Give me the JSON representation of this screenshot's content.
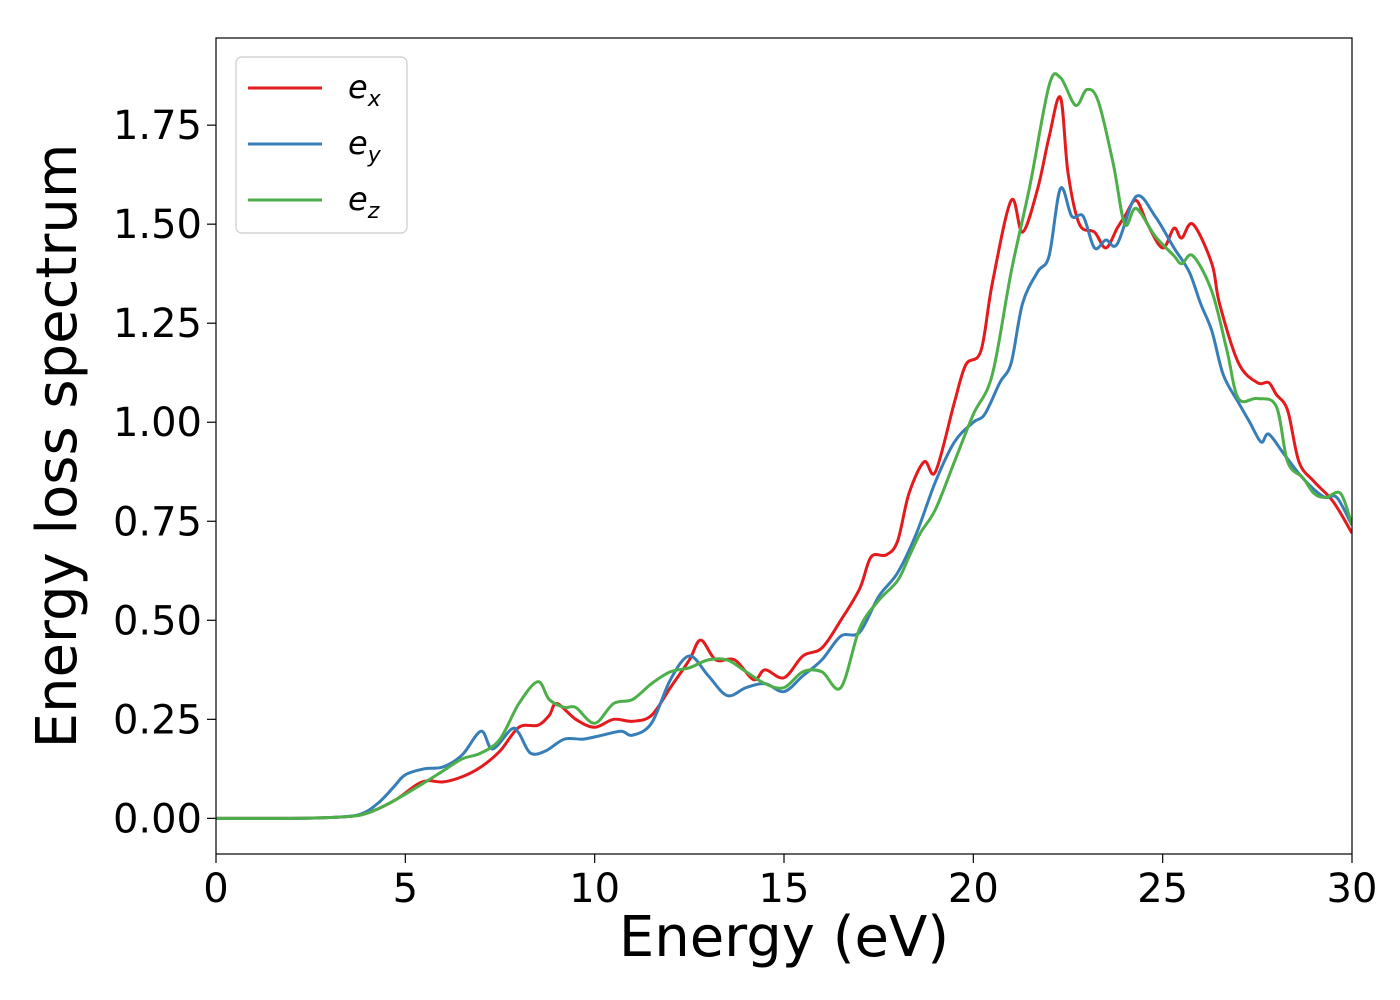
{
  "chart_data": {
    "type": "line",
    "title": "",
    "xlabel": "Energy (eV)",
    "ylabel": "Energy loss spectrum",
    "xlim": [
      0,
      30
    ],
    "ylim": [
      -0.09,
      1.97
    ],
    "xticks": [
      0,
      5,
      10,
      15,
      20,
      25,
      30
    ],
    "xtick_labels": [
      "0",
      "5",
      "10",
      "15",
      "20",
      "25",
      "30"
    ],
    "yticks": [
      0.0,
      0.25,
      0.5,
      0.75,
      1.0,
      1.25,
      1.5,
      1.75
    ],
    "ytick_labels": [
      "0.00",
      "0.25",
      "0.50",
      "0.75",
      "1.00",
      "1.25",
      "1.50",
      "1.75"
    ],
    "grid": false,
    "legend": "top-left",
    "series": [
      {
        "name": "e_x",
        "label_base": "e",
        "label_sub": "x",
        "color": "#e41a1c",
        "points": [
          [
            0,
            0
          ],
          [
            2,
            0
          ],
          [
            3,
            0.002
          ],
          [
            3.8,
            0.008
          ],
          [
            4.3,
            0.025
          ],
          [
            4.8,
            0.05
          ],
          [
            5.3,
            0.085
          ],
          [
            5.6,
            0.095
          ],
          [
            6,
            0.092
          ],
          [
            6.5,
            0.105
          ],
          [
            7,
            0.13
          ],
          [
            7.5,
            0.17
          ],
          [
            8,
            0.23
          ],
          [
            8.5,
            0.235
          ],
          [
            8.8,
            0.26
          ],
          [
            9,
            0.29
          ],
          [
            9.5,
            0.25
          ],
          [
            10,
            0.23
          ],
          [
            10.5,
            0.25
          ],
          [
            11,
            0.245
          ],
          [
            11.5,
            0.26
          ],
          [
            12,
            0.33
          ],
          [
            12.5,
            0.4
          ],
          [
            12.8,
            0.45
          ],
          [
            13.2,
            0.4
          ],
          [
            13.7,
            0.4
          ],
          [
            14.2,
            0.35
          ],
          [
            14.5,
            0.375
          ],
          [
            15,
            0.355
          ],
          [
            15.5,
            0.41
          ],
          [
            16,
            0.43
          ],
          [
            16.5,
            0.5
          ],
          [
            17,
            0.58
          ],
          [
            17.3,
            0.66
          ],
          [
            17.7,
            0.665
          ],
          [
            18,
            0.7
          ],
          [
            18.3,
            0.82
          ],
          [
            18.7,
            0.9
          ],
          [
            19,
            0.875
          ],
          [
            19.5,
            1.05
          ],
          [
            19.8,
            1.145
          ],
          [
            20.2,
            1.18
          ],
          [
            20.5,
            1.35
          ],
          [
            21,
            1.56
          ],
          [
            21.3,
            1.48
          ],
          [
            21.7,
            1.59
          ],
          [
            22,
            1.72
          ],
          [
            22.3,
            1.82
          ],
          [
            22.5,
            1.63
          ],
          [
            22.8,
            1.5
          ],
          [
            23.2,
            1.48
          ],
          [
            23.5,
            1.44
          ],
          [
            23.8,
            1.49
          ],
          [
            24,
            1.52
          ],
          [
            24.3,
            1.56
          ],
          [
            24.6,
            1.5
          ],
          [
            25,
            1.44
          ],
          [
            25.3,
            1.49
          ],
          [
            25.5,
            1.465
          ],
          [
            25.8,
            1.5
          ],
          [
            26.3,
            1.4
          ],
          [
            26.5,
            1.3
          ],
          [
            27,
            1.15
          ],
          [
            27.5,
            1.1
          ],
          [
            27.8,
            1.1
          ],
          [
            28,
            1.07
          ],
          [
            28.3,
            1.03
          ],
          [
            28.6,
            0.9
          ],
          [
            29,
            0.85
          ],
          [
            29.5,
            0.8
          ],
          [
            30,
            0.72
          ]
        ]
      },
      {
        "name": "e_y",
        "label_base": "e",
        "label_sub": "y",
        "color": "#377eb8",
        "points": [
          [
            0,
            0
          ],
          [
            2,
            0
          ],
          [
            3,
            0.002
          ],
          [
            3.8,
            0.01
          ],
          [
            4.3,
            0.04
          ],
          [
            4.7,
            0.08
          ],
          [
            5,
            0.11
          ],
          [
            5.5,
            0.125
          ],
          [
            6,
            0.13
          ],
          [
            6.5,
            0.16
          ],
          [
            7,
            0.22
          ],
          [
            7.3,
            0.175
          ],
          [
            7.8,
            0.225
          ],
          [
            8,
            0.215
          ],
          [
            8.3,
            0.165
          ],
          [
            8.7,
            0.17
          ],
          [
            9.2,
            0.2
          ],
          [
            9.7,
            0.2
          ],
          [
            10.2,
            0.21
          ],
          [
            10.7,
            0.22
          ],
          [
            11,
            0.21
          ],
          [
            11.5,
            0.24
          ],
          [
            12,
            0.35
          ],
          [
            12.5,
            0.41
          ],
          [
            13,
            0.36
          ],
          [
            13.5,
            0.31
          ],
          [
            14,
            0.33
          ],
          [
            14.5,
            0.34
          ],
          [
            15,
            0.32
          ],
          [
            15.5,
            0.36
          ],
          [
            16,
            0.4
          ],
          [
            16.5,
            0.46
          ],
          [
            17,
            0.47
          ],
          [
            17.5,
            0.56
          ],
          [
            18,
            0.62
          ],
          [
            18.5,
            0.72
          ],
          [
            19,
            0.85
          ],
          [
            19.5,
            0.95
          ],
          [
            20,
            1.0
          ],
          [
            20.3,
            1.02
          ],
          [
            20.7,
            1.1
          ],
          [
            21,
            1.15
          ],
          [
            21.3,
            1.3
          ],
          [
            21.7,
            1.38
          ],
          [
            22,
            1.42
          ],
          [
            22.3,
            1.59
          ],
          [
            22.6,
            1.52
          ],
          [
            22.9,
            1.52
          ],
          [
            23.2,
            1.44
          ],
          [
            23.5,
            1.46
          ],
          [
            23.8,
            1.45
          ],
          [
            24.3,
            1.57
          ],
          [
            24.8,
            1.52
          ],
          [
            25.3,
            1.44
          ],
          [
            25.7,
            1.38
          ],
          [
            26,
            1.3
          ],
          [
            26.3,
            1.23
          ],
          [
            26.6,
            1.12
          ],
          [
            27,
            1.05
          ],
          [
            27.3,
            1.0
          ],
          [
            27.6,
            0.95
          ],
          [
            27.8,
            0.97
          ],
          [
            28.2,
            0.92
          ],
          [
            28.6,
            0.87
          ],
          [
            29,
            0.83
          ],
          [
            29.3,
            0.81
          ],
          [
            29.6,
            0.81
          ],
          [
            30,
            0.74
          ]
        ]
      },
      {
        "name": "e_z",
        "label_base": "e",
        "label_sub": "z",
        "color": "#4daf4a",
        "points": [
          [
            0,
            0
          ],
          [
            2,
            0
          ],
          [
            3,
            0.002
          ],
          [
            3.8,
            0.008
          ],
          [
            4.3,
            0.025
          ],
          [
            4.8,
            0.05
          ],
          [
            5.5,
            0.09
          ],
          [
            6,
            0.12
          ],
          [
            6.5,
            0.15
          ],
          [
            7,
            0.165
          ],
          [
            7.5,
            0.2
          ],
          [
            8,
            0.29
          ],
          [
            8.5,
            0.345
          ],
          [
            8.8,
            0.3
          ],
          [
            9.2,
            0.28
          ],
          [
            9.5,
            0.28
          ],
          [
            10,
            0.24
          ],
          [
            10.5,
            0.29
          ],
          [
            11,
            0.3
          ],
          [
            11.5,
            0.34
          ],
          [
            12,
            0.37
          ],
          [
            12.5,
            0.38
          ],
          [
            13,
            0.4
          ],
          [
            13.5,
            0.4
          ],
          [
            14,
            0.37
          ],
          [
            14.5,
            0.34
          ],
          [
            15,
            0.33
          ],
          [
            15.5,
            0.37
          ],
          [
            16,
            0.37
          ],
          [
            16.5,
            0.33
          ],
          [
            17,
            0.48
          ],
          [
            17.5,
            0.55
          ],
          [
            18,
            0.6
          ],
          [
            18.3,
            0.66
          ],
          [
            18.6,
            0.72
          ],
          [
            19,
            0.78
          ],
          [
            19.5,
            0.9
          ],
          [
            20,
            1.02
          ],
          [
            20.5,
            1.12
          ],
          [
            21,
            1.38
          ],
          [
            21.5,
            1.6
          ],
          [
            22,
            1.85
          ],
          [
            22.3,
            1.87
          ],
          [
            22.7,
            1.8
          ],
          [
            23,
            1.84
          ],
          [
            23.3,
            1.81
          ],
          [
            23.7,
            1.65
          ],
          [
            24,
            1.5
          ],
          [
            24.3,
            1.54
          ],
          [
            24.8,
            1.47
          ],
          [
            25.3,
            1.42
          ],
          [
            25.5,
            1.4
          ],
          [
            25.8,
            1.42
          ],
          [
            26.3,
            1.33
          ],
          [
            26.7,
            1.18
          ],
          [
            27,
            1.06
          ],
          [
            27.5,
            1.06
          ],
          [
            28,
            1.04
          ],
          [
            28.3,
            0.9
          ],
          [
            28.7,
            0.86
          ],
          [
            29,
            0.82
          ],
          [
            29.3,
            0.81
          ],
          [
            29.7,
            0.82
          ],
          [
            30,
            0.74
          ]
        ]
      }
    ]
  }
}
